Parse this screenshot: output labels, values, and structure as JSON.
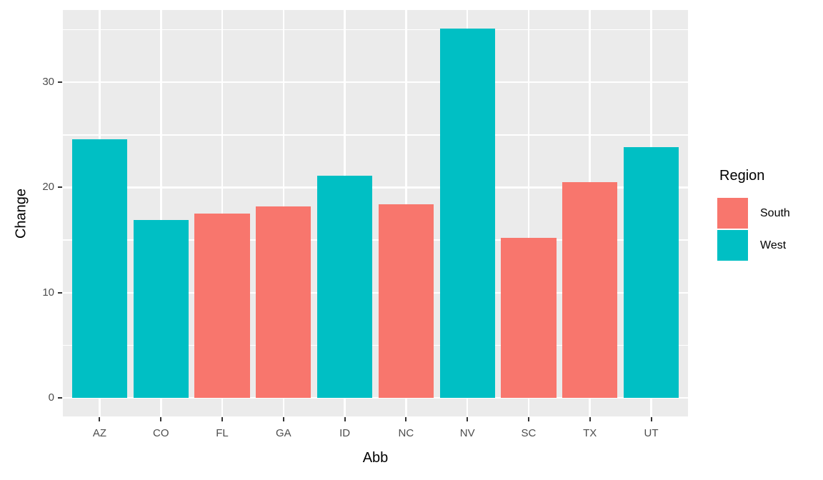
{
  "figure": {
    "background": "#FFFFFF"
  },
  "chart_data": {
    "type": "bar",
    "title": "",
    "xlabel": "Abb",
    "ylabel": "Change",
    "categories": [
      "AZ",
      "CO",
      "FL",
      "GA",
      "ID",
      "NC",
      "NV",
      "SC",
      "TX",
      "UT"
    ],
    "values": [
      24.6,
      16.9,
      17.5,
      18.2,
      21.1,
      18.4,
      35.1,
      15.2,
      20.5,
      23.8
    ],
    "point_region": [
      "West",
      "West",
      "South",
      "South",
      "West",
      "South",
      "West",
      "South",
      "South",
      "West"
    ],
    "region_colors": {
      "South": "#F8766D",
      "West": "#00BFC4"
    },
    "legend": {
      "title": "Region",
      "position": "right",
      "entries": [
        {
          "label": "South",
          "color": "#F8766D"
        },
        {
          "label": "West",
          "color": "#00BFC4"
        }
      ]
    },
    "yticks": [
      0,
      10,
      20,
      30
    ],
    "y_minor_gridlines": [
      5,
      15,
      25,
      35
    ],
    "ylim": [
      -1.75,
      36.86
    ],
    "bar_width_fraction": 0.9,
    "grid": "white major and minor gridlines on gray panel",
    "panel_background": "#EBEBEB",
    "gridline_color": "#FFFFFF",
    "tick_label_color": "#4D4D4D",
    "axis_title_color": "#000000",
    "tick_mark_color": "#333333"
  }
}
